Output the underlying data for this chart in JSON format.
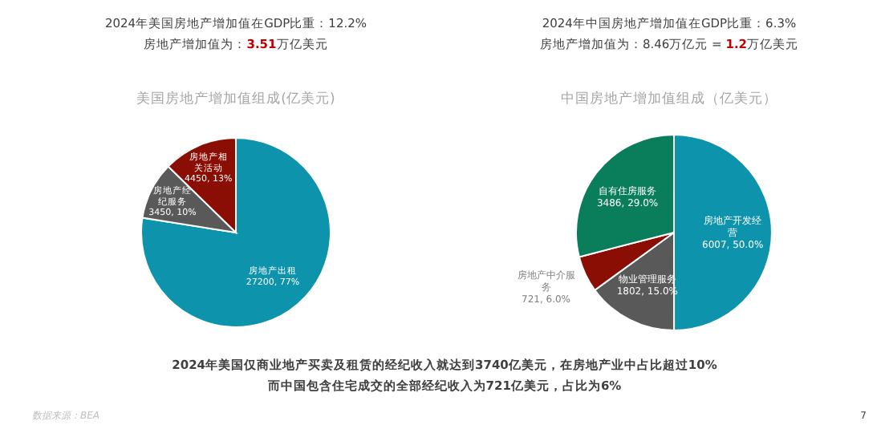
{
  "chart_data": [
    {
      "type": "pie",
      "title": "美国房地产增加值组成(亿美元)",
      "annotations": [
        "2024年美国房地产增加值在GDP比重：12.2%",
        "房地产增加值为：**3.51**万亿美元"
      ],
      "categories": [
        "房地产出租",
        "房地产经纪服务",
        "房地产相关活动"
      ],
      "values": [
        27200,
        3450,
        4450
      ],
      "colors": [
        "#0e93ad",
        "#595959",
        "#8b0e04"
      ],
      "value_labels": [
        "27200, 77%",
        "3450, 10%",
        "4450, 13%"
      ]
    },
    {
      "type": "pie",
      "title": "中国房地产增加值组成（亿美元）",
      "annotations": [
        "2024年中国房地产增加值在GDP比重：6.3%",
        "房地产增加值为：8.46万亿元 = **1.2**万亿美元"
      ],
      "categories": [
        "房地产开发经营",
        "物业管理服务",
        "房地产中介服务",
        "自有住房服务"
      ],
      "values": [
        6007,
        1802,
        721,
        3486
      ],
      "colors": [
        "#0e93ad",
        "#595959",
        "#8b0e04",
        "#0a7d5a"
      ],
      "value_labels": [
        "6007, 50.0%",
        "1802, 15.0%",
        "721, 6.0%",
        "3486, 29.0%"
      ]
    },
    {
      "type": "other",
      "annotations": [
        "2024年美国仅商业地产买卖及租赁的经纪收入就达到3740亿美元，在房地产业中占比超过10%",
        "而中国包含住宅成交的全部经纪收入为721亿美元，占比为6%",
        "数据来源：BEA",
        "7"
      ]
    }
  ]
}
